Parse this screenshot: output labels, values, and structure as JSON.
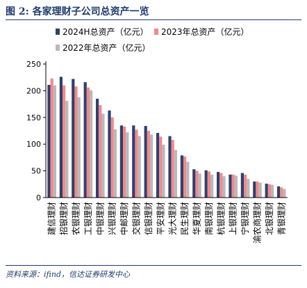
{
  "header": {
    "title": "图 2: 各家理财子公司总资产一览"
  },
  "footer": {
    "source": "资料来源：ifind，信达证券研发中心"
  },
  "chart_data": {
    "type": "bar",
    "categories": [
      "建信理财",
      "招银理财",
      "农银理财",
      "工银理财",
      "中银理财",
      "兴银理财",
      "中邮理财",
      "交银理财",
      "信银理财",
      "平安理财",
      "光大理财",
      "民生理财",
      "华夏理财",
      "南银理财",
      "杭银理财",
      "上银理财",
      "宁银理财",
      "渝农商理财",
      "北银理财",
      "青银理财"
    ],
    "series": [
      {
        "name": "2024H总资产（亿元）",
        "color": "#2e4170",
        "values": [
          211,
          226,
          222,
          216,
          185,
          163,
          135,
          135,
          134,
          121,
          115,
          79,
          53,
          51,
          48,
          43,
          46,
          30,
          26,
          21
        ]
      },
      {
        "name": "2023年总资产（亿元）",
        "color": "#f4888a",
        "values": [
          223,
          210,
          208,
          206,
          173,
          150,
          133,
          127,
          125,
          114,
          108,
          77,
          50,
          49,
          46,
          43,
          43,
          30,
          25,
          19
        ]
      },
      {
        "name": "2022年总资产（亿元）",
        "color": "#b9b9b9",
        "values": [
          210,
          181,
          188,
          201,
          157,
          128,
          122,
          115,
          118,
          99,
          89,
          67,
          45,
          43,
          40,
          41,
          35,
          28,
          24,
          16
        ]
      }
    ],
    "ylim": [
      0,
      250
    ],
    "yticks": [
      0,
      50,
      100,
      150,
      200,
      250
    ],
    "legend_position": "top"
  }
}
